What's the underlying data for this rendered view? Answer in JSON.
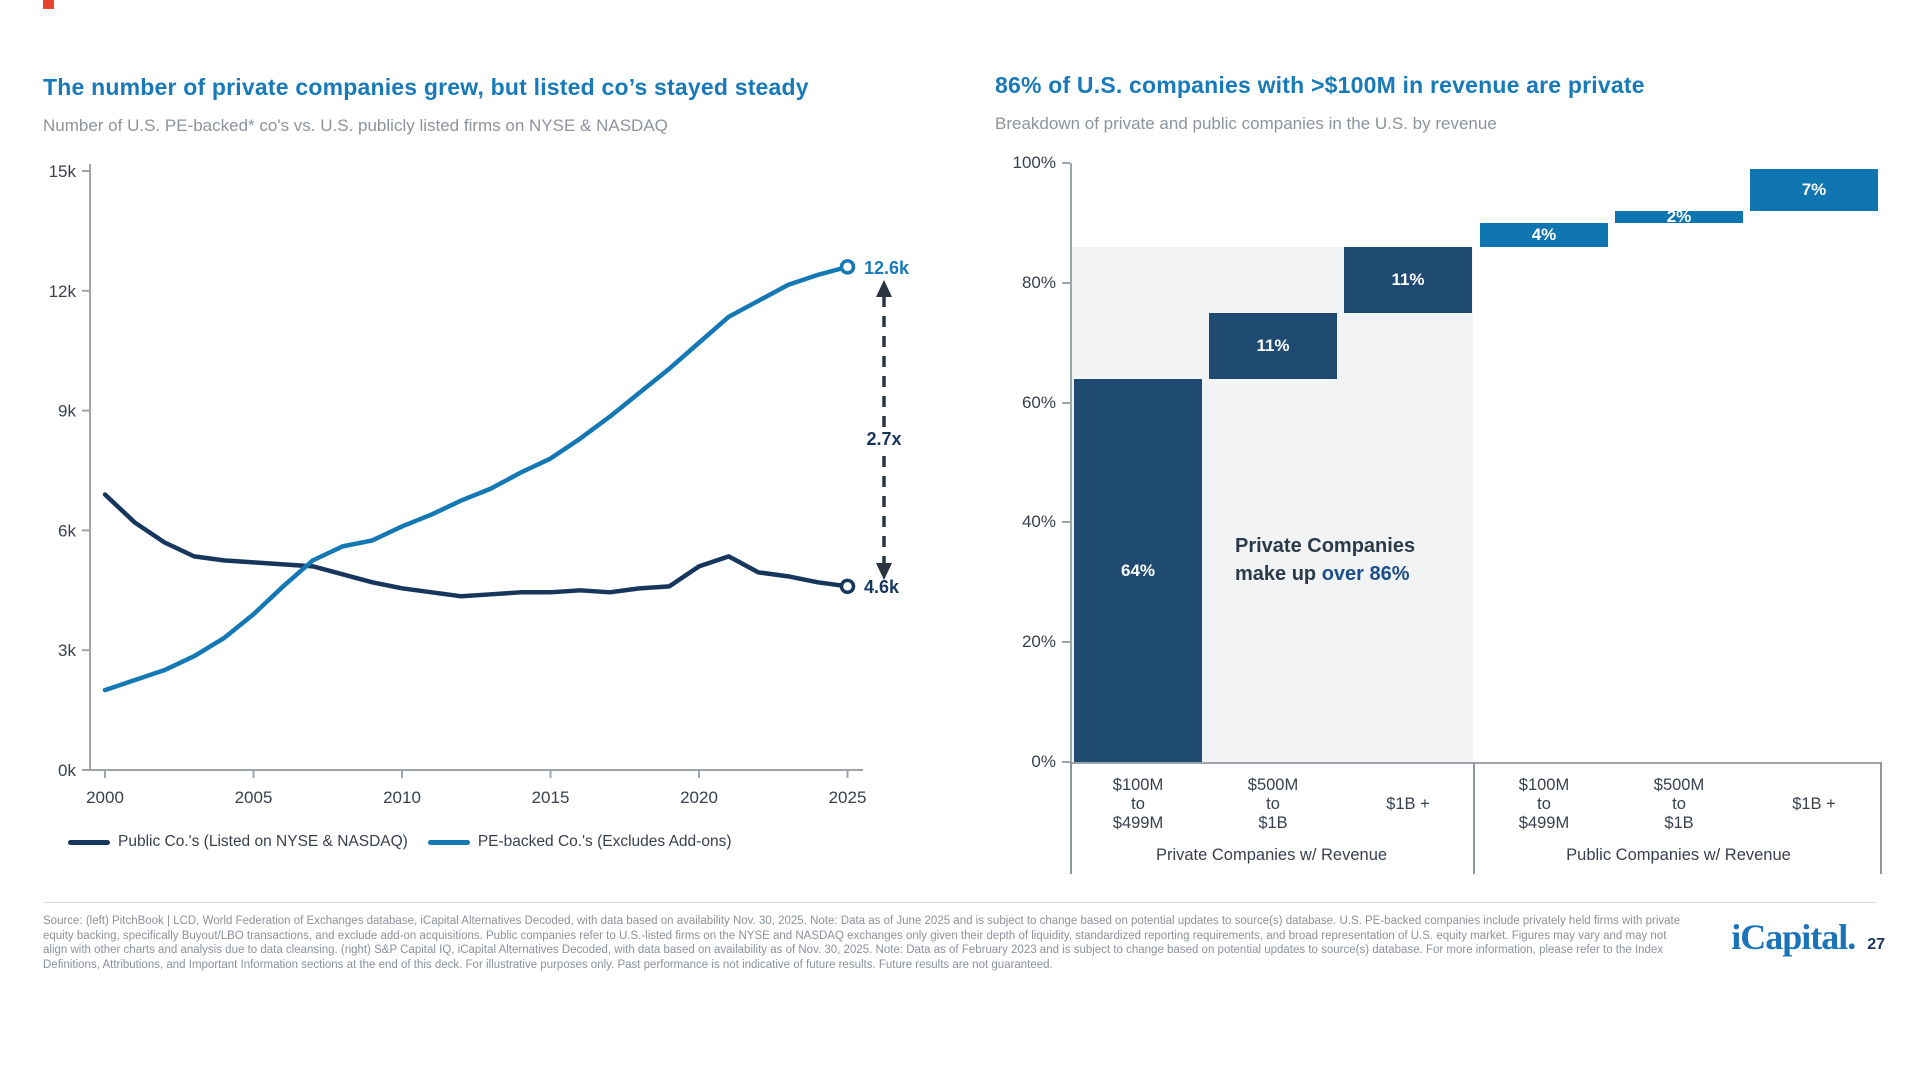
{
  "palette": {
    "title_blue": "#187AB8",
    "subtitle_gray": "#8D949C",
    "axis_text": "#39414E",
    "axis_line": "#9EA4AB",
    "public_line_navy": "#17365D",
    "pe_line_blue": "#1478B4",
    "bar_navy": "#1F4A72",
    "bar_blue": "#0F76B1",
    "highlight_gray": "#F2F3F4",
    "annotation_dark": "#2B3A49",
    "annotation_accent": "#1C4E8C",
    "accent_red": "#E8432C",
    "logo_blue": "#1B74B8"
  },
  "header_left": {
    "title": "The number of private companies grew, but listed co’s stayed steady",
    "subtitle": "Number of U.S. PE-backed* co's vs. U.S. publicly listed firms on NYSE & NASDAQ"
  },
  "header_right": {
    "title": "86% of U.S. companies with >$100M in revenue are private",
    "subtitle": "Breakdown of private and public companies in the U.S. by revenue"
  },
  "left_annotations": {
    "pe_end": "12.6k",
    "public_end": "4.6k",
    "multiple": "2.7x"
  },
  "legend": {
    "public": "Public Co.'s (Listed on NYSE & NASDAQ)",
    "pe": "PE-backed Co.'s (Excludes Add-ons)"
  },
  "right_annotation": {
    "line1": "Private Companies",
    "line2_plain": "make up ",
    "line2_accent": "over 86%"
  },
  "footer": {
    "source": "Source: (left) PitchBook | LCD, World Federation of Exchanges database, iCapital Alternatives Decoded, with data based on availability Nov. 30, 2025. Note: Data as of June 2025 and is subject to change based on potential updates to source(s) database. U.S. PE-backed companies include privately held firms with private equity backing, specifically Buyout/LBO transactions, and exclude add-on acquisitions. Public companies refer to U.S.-listed firms on the NYSE and NASDAQ exchanges only given their depth of liquidity, standardized reporting requirements, and broad representation of U.S. equity market. Figures may vary and may not align with other charts and analysis due to data cleansing. (right) S&P Capital IQ, iCapital Alternatives Decoded, with data based on availability as of Nov. 30, 2025. Note: Data as of February 2023 and is subject to change based on potential updates to source(s) database. For more information, please refer to the Index Definitions, Attributions, and Important Information sections at the end of this deck. For illustrative purposes only. Past performance is not indicative of future results. Future results are not guaranteed.",
    "logo": "iCapital.",
    "page": "27"
  },
  "chart_data": [
    {
      "type": "line",
      "title": "The number of private companies grew, but listed co’s stayed steady",
      "subtitle": "Number of U.S. PE-backed* co's vs. U.S. publicly listed firms on NYSE & NASDAQ",
      "units": "thousands of companies",
      "x": [
        2000,
        2001,
        2002,
        2003,
        2004,
        2005,
        2006,
        2007,
        2008,
        2009,
        2010,
        2011,
        2012,
        2013,
        2014,
        2015,
        2016,
        2017,
        2018,
        2019,
        2020,
        2021,
        2022,
        2023,
        2024,
        2025
      ],
      "series": [
        {
          "name": "Public Co.'s (Listed on NYSE & NASDAQ)",
          "color": "#17365D",
          "values": [
            6.9,
            6.2,
            5.7,
            5.35,
            5.25,
            5.2,
            5.15,
            5.1,
            4.9,
            4.7,
            4.55,
            4.45,
            4.35,
            4.4,
            4.45,
            4.45,
            4.5,
            4.45,
            4.55,
            4.6,
            5.1,
            5.35,
            4.95,
            4.85,
            4.7,
            4.6
          ],
          "end_label": "4.6k"
        },
        {
          "name": "PE-backed Co.'s (Excludes Add-ons)",
          "color": "#1478B4",
          "values": [
            2.0,
            2.25,
            2.5,
            2.85,
            3.3,
            3.9,
            4.6,
            5.25,
            5.6,
            5.75,
            6.1,
            6.4,
            6.75,
            7.05,
            7.45,
            7.8,
            8.3,
            8.85,
            9.45,
            10.05,
            10.7,
            11.35,
            11.75,
            12.15,
            12.4,
            12.6
          ],
          "end_label": "12.6k"
        }
      ],
      "annotation_between_ends": "2.7x",
      "y_ticks": [
        "0k",
        "3k",
        "6k",
        "9k",
        "12k",
        "15k"
      ],
      "x_ticks": [
        2000,
        2005,
        2010,
        2015,
        2020,
        2025
      ],
      "ylim": [
        0,
        15
      ],
      "legend_position": "bottom",
      "grid": false
    },
    {
      "type": "bar",
      "subtype": "stacked-waterfall",
      "title": "86% of U.S. companies with >$100M in revenue are private",
      "subtitle": "Breakdown of private and public companies in the U.S. by revenue",
      "categories": [
        [
          "$100M",
          "to",
          "$499M"
        ],
        [
          "$500M",
          "to",
          "$1B"
        ],
        [
          "$1B +"
        ],
        [
          "$100M",
          "to",
          "$499M"
        ],
        [
          "$500M",
          "to",
          "$1B"
        ],
        [
          "$1B +"
        ]
      ],
      "values": [
        64,
        11,
        11,
        4,
        2,
        7
      ],
      "starts": [
        0,
        64,
        75,
        86,
        90,
        92
      ],
      "labels": [
        "64%",
        "11%",
        "11%",
        "4%",
        "2%",
        "7%"
      ],
      "bar_colors": [
        "#1F4A72",
        "#1F4A72",
        "#1F4A72",
        "#0F76B1",
        "#0F76B1",
        "#0F76B1"
      ],
      "groups": [
        {
          "label": "Private Companies w/ Revenue",
          "bars": [
            0,
            1,
            2
          ]
        },
        {
          "label": "Public Companies w/ Revenue",
          "bars": [
            3,
            4,
            5
          ]
        }
      ],
      "y_ticks": [
        "0%",
        "20%",
        "40%",
        "60%",
        "80%",
        "100%"
      ],
      "ylim": [
        0,
        100
      ],
      "highlight_region": {
        "upto_pct": 86,
        "color": "#F2F3F4",
        "note": "Private Companies make up over 86%"
      },
      "grid": false
    }
  ]
}
